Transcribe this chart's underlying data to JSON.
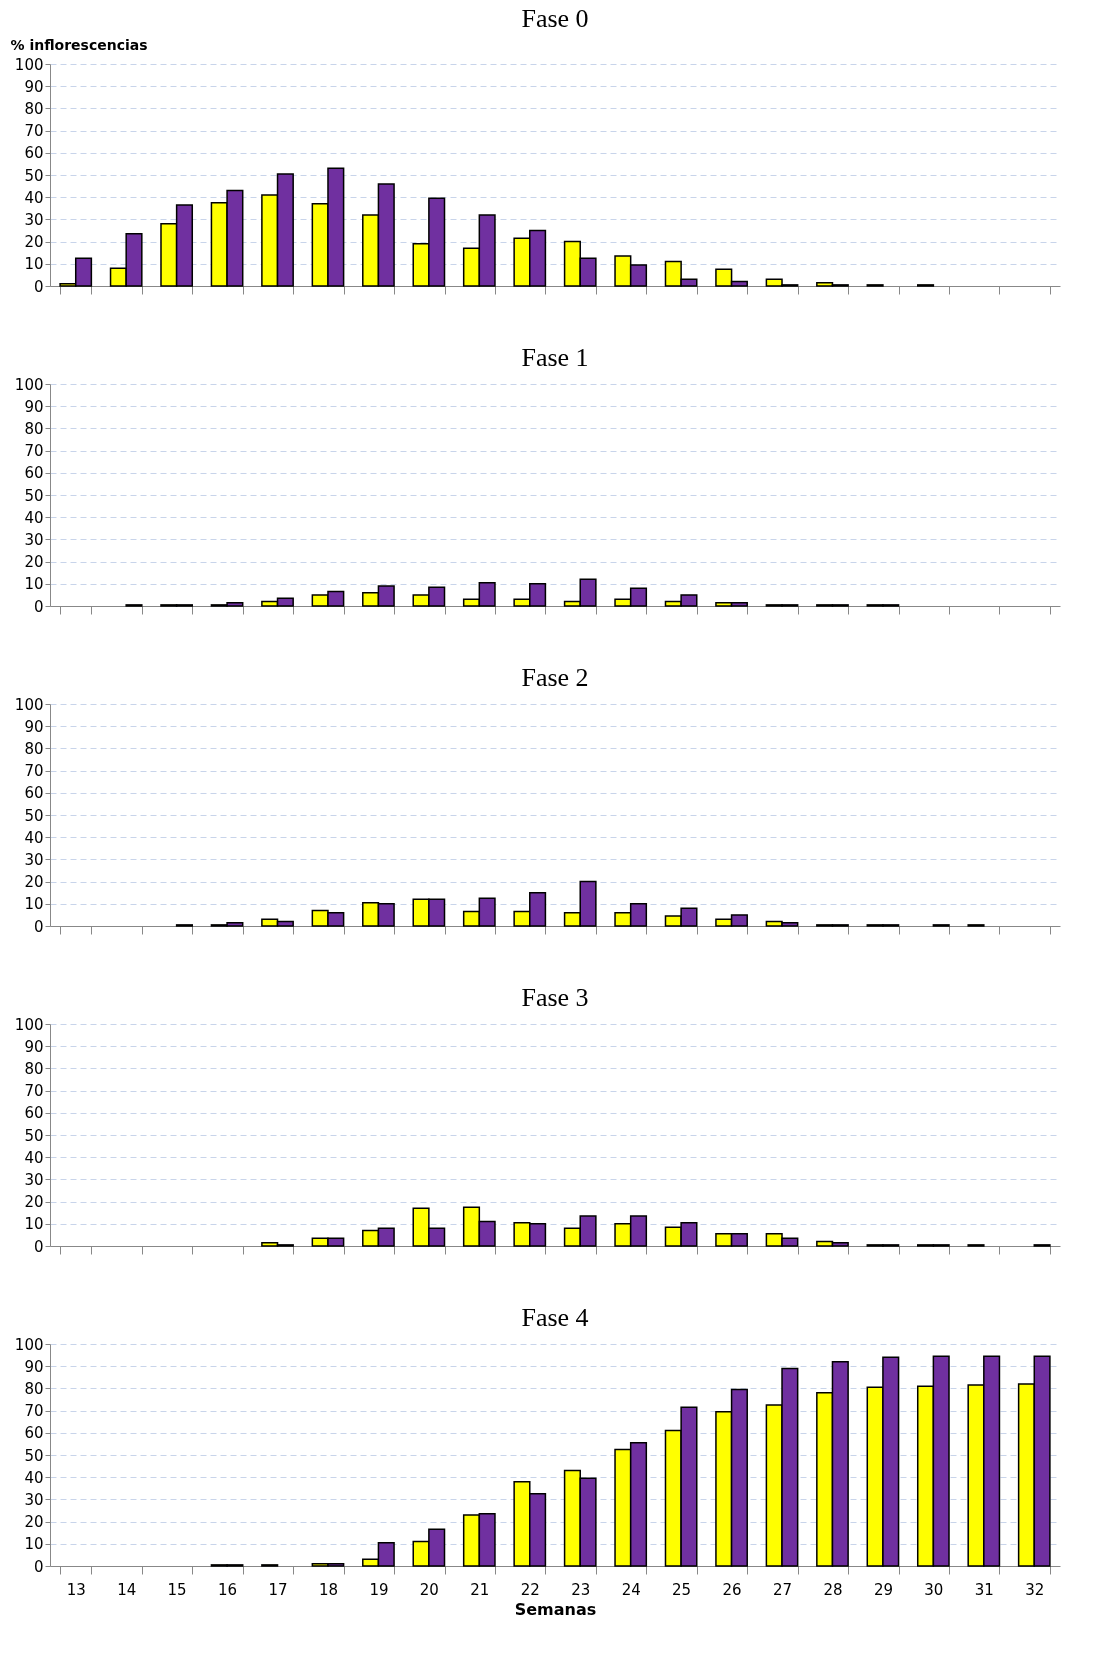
{
  "chart_data": [
    {
      "type": "bar",
      "title": "Fase 0",
      "ylabel": "% inflorescencias",
      "categories": [
        "13",
        "14",
        "15",
        "16",
        "17",
        "18",
        "19",
        "20",
        "21",
        "22",
        "23",
        "24",
        "25",
        "26",
        "27",
        "28",
        "29",
        "30",
        "31",
        "32"
      ],
      "ylim": [
        0,
        100
      ],
      "yticks": [
        0,
        10,
        20,
        30,
        40,
        50,
        60,
        70,
        80,
        90,
        100
      ],
      "grid": "y",
      "tick_labels": "y",
      "series": [
        {
          "color": "#ffff00",
          "values": [
            1,
            8,
            28,
            37.5,
            41,
            37,
            32,
            19,
            17,
            21.5,
            20,
            13.5,
            11,
            7.5,
            3,
            1.5,
            0.5,
            0.5,
            0,
            0
          ]
        },
        {
          "color": "#7030a0",
          "values": [
            12.5,
            23.5,
            36.5,
            43,
            50.5,
            53,
            46,
            39.5,
            32,
            25,
            12.5,
            9.5,
            3,
            2,
            0.5,
            0.5,
            0,
            0,
            0,
            0
          ]
        }
      ]
    },
    {
      "type": "bar",
      "title": "Fase 1",
      "categories": [
        "13",
        "14",
        "15",
        "16",
        "17",
        "18",
        "19",
        "20",
        "21",
        "22",
        "23",
        "24",
        "25",
        "26",
        "27",
        "28",
        "29",
        "30",
        "31",
        "32"
      ],
      "ylim": [
        0,
        100
      ],
      "yticks": [
        0,
        10,
        20,
        30,
        40,
        50,
        60,
        70,
        80,
        90,
        100
      ],
      "grid": "y",
      "tick_labels": "y",
      "series": [
        {
          "color": "#ffff00",
          "values": [
            0,
            0,
            0.5,
            0.5,
            2,
            5,
            6,
            5,
            3,
            3,
            2,
            3,
            2,
            1.5,
            0.5,
            0.5,
            0.5,
            0,
            0,
            0
          ]
        },
        {
          "color": "#7030a0",
          "values": [
            0,
            0.5,
            0.5,
            1.5,
            3.5,
            6.5,
            9,
            8.5,
            10.5,
            10,
            12,
            8,
            5,
            1.5,
            0.5,
            0.5,
            0.5,
            0,
            0,
            0
          ]
        }
      ]
    },
    {
      "type": "bar",
      "title": "Fase 2",
      "categories": [
        "13",
        "14",
        "15",
        "16",
        "17",
        "18",
        "19",
        "20",
        "21",
        "22",
        "23",
        "24",
        "25",
        "26",
        "27",
        "28",
        "29",
        "30",
        "31",
        "32"
      ],
      "ylim": [
        0,
        100
      ],
      "yticks": [
        0,
        10,
        20,
        30,
        40,
        50,
        60,
        70,
        80,
        90,
        100
      ],
      "grid": "y",
      "tick_labels": "y",
      "series": [
        {
          "color": "#ffff00",
          "values": [
            0,
            0,
            0,
            0.5,
            3,
            7,
            10.5,
            12,
            6.5,
            6.5,
            6,
            6,
            4.5,
            3,
            2,
            0.5,
            0.5,
            0,
            0.5,
            0
          ]
        },
        {
          "color": "#7030a0",
          "values": [
            0,
            0,
            0.5,
            1.5,
            2,
            6,
            10,
            12,
            12.5,
            15,
            20,
            10,
            8,
            5,
            1.5,
            0.5,
            0.5,
            0.5,
            0,
            0
          ]
        }
      ]
    },
    {
      "type": "bar",
      "title": "Fase 3",
      "categories": [
        "13",
        "14",
        "15",
        "16",
        "17",
        "18",
        "19",
        "20",
        "21",
        "22",
        "23",
        "24",
        "25",
        "26",
        "27",
        "28",
        "29",
        "30",
        "31",
        "32"
      ],
      "ylim": [
        0,
        100
      ],
      "yticks": [
        0,
        10,
        20,
        30,
        40,
        50,
        60,
        70,
        80,
        90,
        100
      ],
      "grid": "y",
      "tick_labels": "y",
      "series": [
        {
          "color": "#ffff00",
          "values": [
            0,
            0,
            0,
            0,
            1.5,
            3.5,
            7,
            17,
            17.5,
            10.5,
            8,
            10,
            8.5,
            5.5,
            5.5,
            2,
            0.5,
            0.5,
            0.5,
            0
          ]
        },
        {
          "color": "#7030a0",
          "values": [
            0,
            0,
            0,
            0,
            0.5,
            3.5,
            8,
            8,
            11,
            10,
            13.5,
            13.5,
            10.5,
            5.5,
            3.5,
            1.5,
            0.5,
            0.5,
            0,
            0.5
          ]
        }
      ]
    },
    {
      "type": "bar",
      "title": "Fase 4",
      "xlabel": "Semanas",
      "categories": [
        "13",
        "14",
        "15",
        "16",
        "17",
        "18",
        "19",
        "20",
        "21",
        "22",
        "23",
        "24",
        "25",
        "26",
        "27",
        "28",
        "29",
        "30",
        "31",
        "32"
      ],
      "ylim": [
        0,
        100
      ],
      "yticks": [
        0,
        10,
        20,
        30,
        40,
        50,
        60,
        70,
        80,
        90,
        100
      ],
      "grid": "y",
      "series": [
        {
          "color": "#ffff00",
          "values": [
            0,
            0,
            0,
            0.5,
            0.5,
            1,
            3,
            11,
            23,
            38,
            43,
            52.5,
            61,
            69.5,
            72.5,
            78,
            80.5,
            81,
            81.5,
            82
          ]
        },
        {
          "color": "#7030a0",
          "values": [
            0,
            0,
            0,
            0.5,
            0,
            1,
            10.5,
            16.5,
            23.5,
            32.5,
            39.5,
            55.5,
            71.5,
            79.5,
            89,
            92,
            94,
            94.5,
            94.5,
            94.5
          ]
        }
      ]
    }
  ]
}
